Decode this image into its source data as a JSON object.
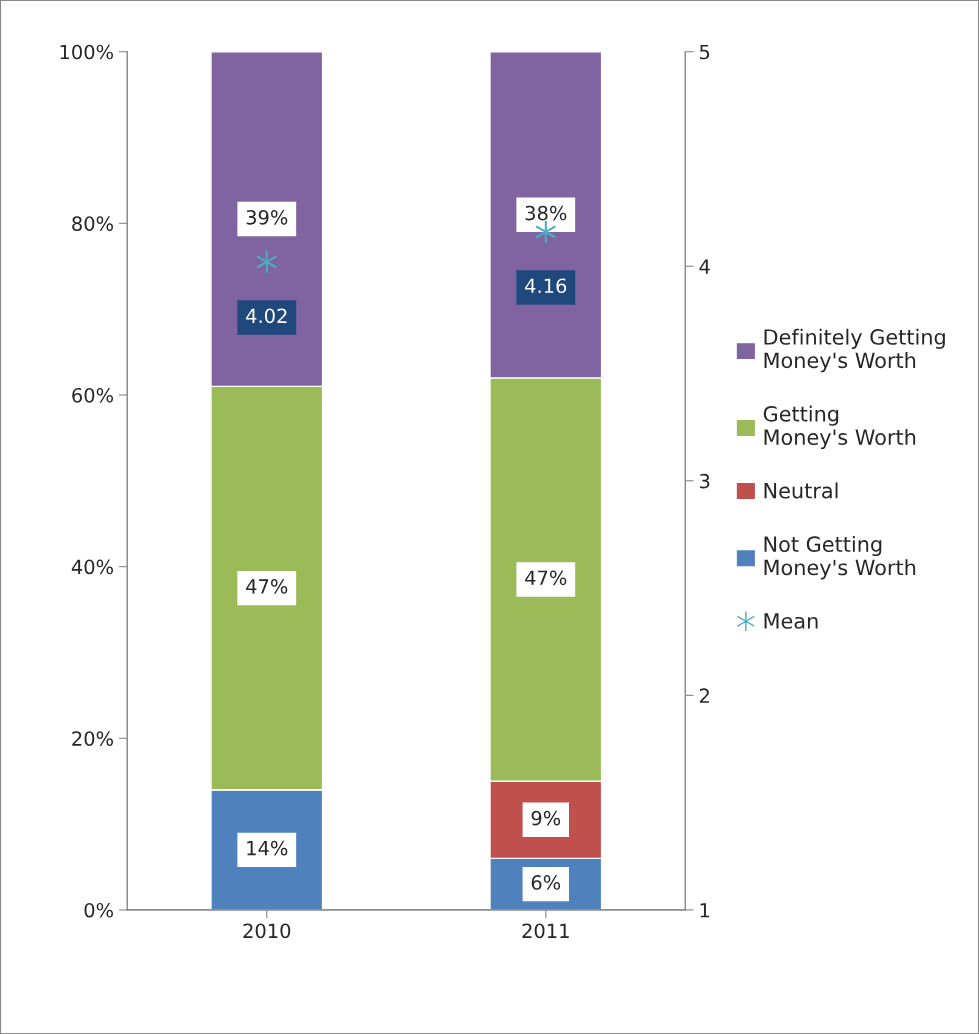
{
  "chart_data": {
    "type": "bar",
    "stacked": true,
    "categories": [
      "2010",
      "2011"
    ],
    "series": [
      {
        "name": "Not Getting Money's Worth",
        "color": "#4f81bd",
        "values": [
          14,
          6
        ],
        "value_labels": [
          "14%",
          "6%"
        ]
      },
      {
        "name": "Neutral",
        "color": "#c0504d",
        "values": [
          0,
          9
        ],
        "value_labels": [
          null,
          "9%"
        ]
      },
      {
        "name": "Getting Money's Worth",
        "color": "#9bbb59",
        "values": [
          47,
          47
        ],
        "value_labels": [
          "47%",
          "47%"
        ]
      },
      {
        "name": "Definitely Getting Money's Worth",
        "color": "#8064a2",
        "values": [
          39,
          38
        ],
        "value_labels": [
          "39%",
          "38%"
        ]
      },
      {
        "name": "Mean",
        "type": "scatter",
        "axis": "y2",
        "marker": "cross",
        "color": "#4bacc6",
        "values": [
          4.02,
          4.16
        ],
        "value_labels": [
          "4.02",
          "4.16"
        ]
      }
    ],
    "ylim": [
      0,
      100
    ],
    "yticks": [
      {
        "value": 0,
        "label": "0%"
      },
      {
        "value": 20,
        "label": "20%"
      },
      {
        "value": 40,
        "label": "40%"
      },
      {
        "value": 60,
        "label": "60%"
      },
      {
        "value": 80,
        "label": "80%"
      },
      {
        "value": 100,
        "label": "100%"
      }
    ],
    "y2lim": [
      1,
      5
    ],
    "y2ticks": [
      1,
      2,
      3,
      4,
      5
    ],
    "grid": false,
    "legend": "right"
  }
}
